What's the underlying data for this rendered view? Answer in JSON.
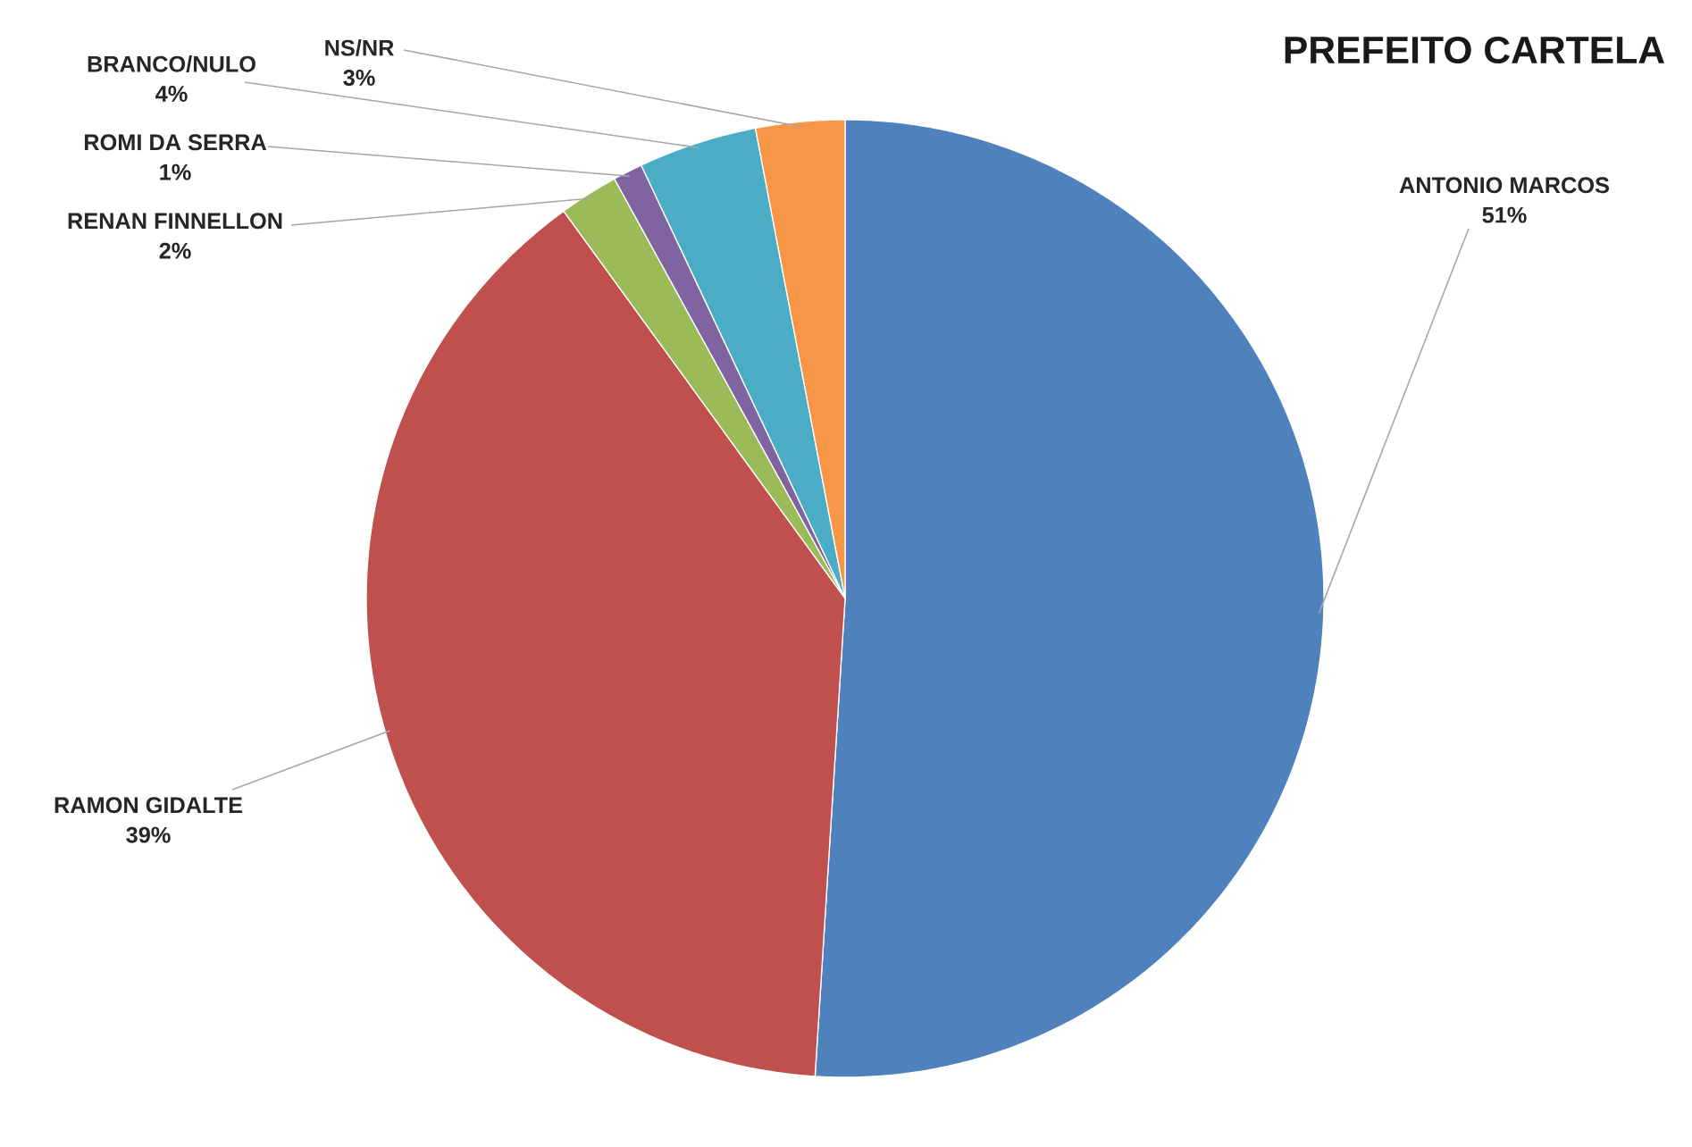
{
  "chart_data": {
    "type": "pie",
    "title": "PREFEITO CARTELA",
    "categories": [
      "ANTONIO MARCOS",
      "RAMON GIDALTE",
      "RENAN FINNELLON",
      "ROMI DA SERRA",
      "BRANCO/NULO",
      "NS/NR"
    ],
    "values": [
      51,
      39,
      2,
      1,
      4,
      3
    ],
    "colors": [
      "#4f81bd",
      "#c0504d",
      "#9bbb59",
      "#8064a2",
      "#4bacc6",
      "#f79646"
    ],
    "value_labels": [
      "51%",
      "39%",
      "2%",
      "1%",
      "4%",
      "3%"
    ]
  }
}
